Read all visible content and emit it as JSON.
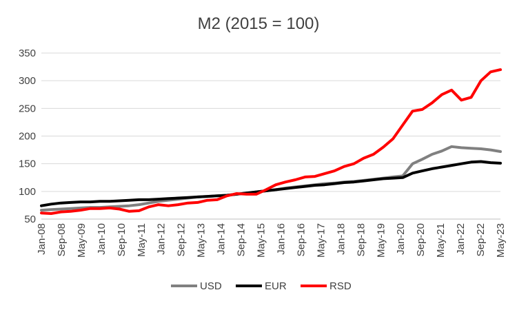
{
  "chart_data": {
    "type": "line",
    "title": "M2 (2015 = 100)",
    "xlabel": "",
    "ylabel": "",
    "ylim": [
      50,
      350
    ],
    "yticks": [
      50,
      100,
      150,
      200,
      250,
      300,
      350
    ],
    "grid": true,
    "legend_position": "bottom",
    "x_tick_labels": [
      "Jan-08",
      "Sep-08",
      "May-09",
      "Jan-10",
      "Sep-10",
      "May-11",
      "Jan-12",
      "Sep-12",
      "May-13",
      "Jan-14",
      "Sep-14",
      "May-15",
      "Jan-16",
      "Sep-16",
      "May-17",
      "Jan-18",
      "Sep-18",
      "May-19",
      "Jan-20",
      "Sep-20",
      "May-21",
      "Jan-22",
      "Sep-22",
      "May-23"
    ],
    "x": [
      "Jan-08",
      "May-08",
      "Sep-08",
      "Jan-09",
      "May-09",
      "Sep-09",
      "Jan-10",
      "May-10",
      "Sep-10",
      "Jan-11",
      "May-11",
      "Sep-11",
      "Jan-12",
      "May-12",
      "Sep-12",
      "Jan-13",
      "May-13",
      "Sep-13",
      "Jan-14",
      "May-14",
      "Sep-14",
      "Jan-15",
      "May-15",
      "Sep-15",
      "Jan-16",
      "May-16",
      "Sep-16",
      "Jan-17",
      "May-17",
      "Sep-17",
      "Jan-18",
      "May-18",
      "Sep-18",
      "Jan-19",
      "May-19",
      "Sep-19",
      "Jan-20",
      "May-20",
      "Sep-20",
      "Jan-21",
      "May-21",
      "Sep-21",
      "Jan-22",
      "May-22",
      "Sep-22",
      "Jan-23",
      "May-23",
      "Jul-23"
    ],
    "series": [
      {
        "name": "USD",
        "color": "#808080",
        "values": [
          66,
          67,
          68,
          69,
          70,
          71,
          71,
          72,
          73,
          74,
          76,
          79,
          82,
          84,
          86,
          88,
          90,
          91,
          92,
          93,
          95,
          97,
          99,
          101,
          103,
          106,
          108,
          110,
          112,
          114,
          115,
          117,
          118,
          120,
          122,
          124,
          126,
          128,
          150,
          158,
          167,
          173,
          181,
          179,
          178,
          177,
          175,
          172
        ]
      },
      {
        "name": "EUR",
        "color": "#000000",
        "values": [
          74,
          77,
          79,
          80,
          81,
          81,
          82,
          82,
          83,
          84,
          85,
          85,
          86,
          87,
          88,
          89,
          90,
          91,
          92,
          93,
          95,
          97,
          99,
          101,
          103,
          105,
          107,
          109,
          111,
          112,
          114,
          116,
          117,
          119,
          121,
          123,
          124,
          125,
          133,
          137,
          141,
          144,
          147,
          150,
          153,
          154,
          152,
          151
        ]
      },
      {
        "name": "RSD",
        "color": "#ff0000",
        "values": [
          61,
          60,
          63,
          64,
          66,
          69,
          69,
          70,
          68,
          64,
          65,
          72,
          76,
          74,
          76,
          79,
          80,
          84,
          85,
          92,
          96,
          95,
          95,
          103,
          112,
          117,
          121,
          126,
          127,
          132,
          137,
          145,
          150,
          160,
          167,
          180,
          195,
          220,
          245,
          248,
          260,
          275,
          283,
          265,
          270,
          300,
          316,
          320
        ]
      }
    ]
  }
}
